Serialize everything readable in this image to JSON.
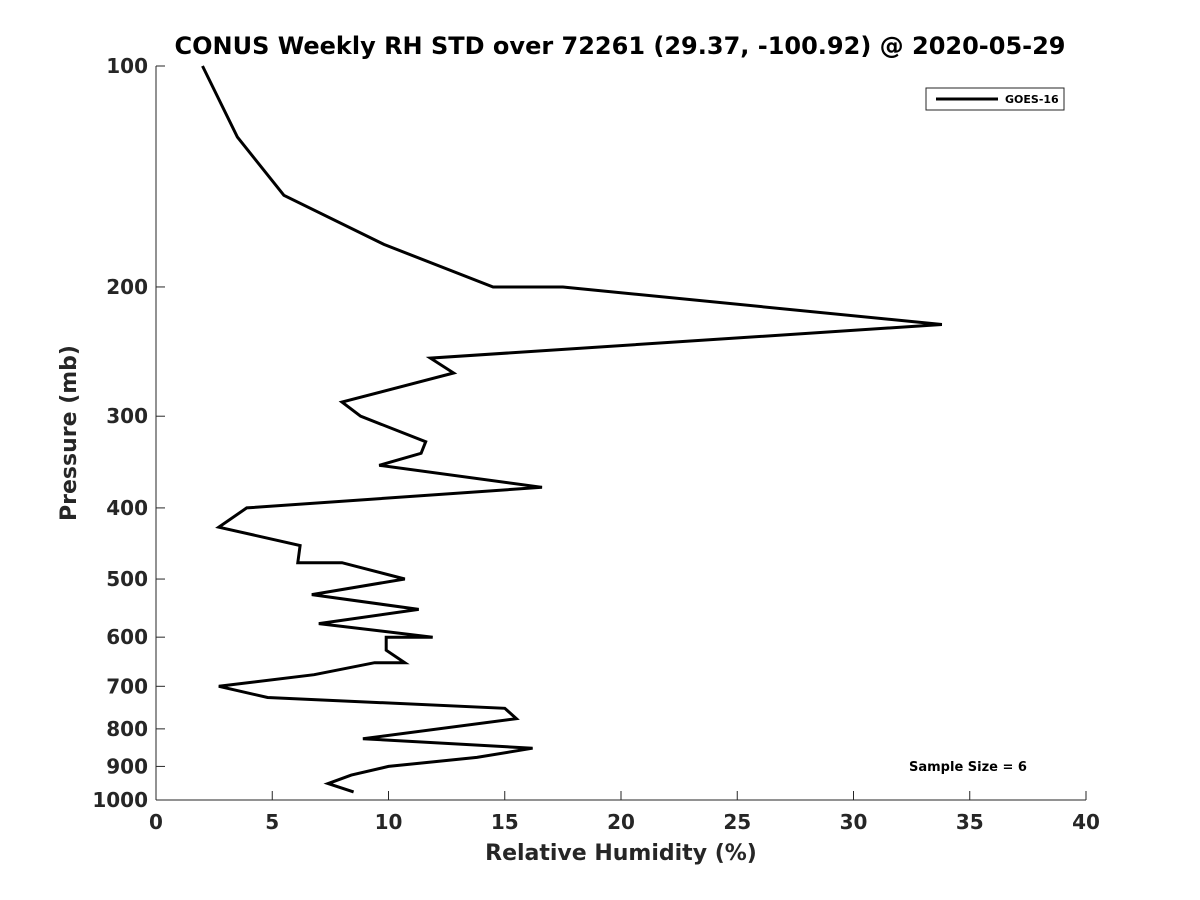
{
  "chart_data": {
    "type": "line",
    "title": "CONUS Weekly RH STD over 72261 (29.37, -100.92) @ 2020-05-29",
    "xlabel": "Relative Humidity (%)",
    "ylabel": "Pressure (mb)",
    "xlim": [
      0,
      40
    ],
    "ylim": [
      100,
      1000
    ],
    "yscale": "log",
    "y_reversed": true,
    "xticks": [
      0,
      5,
      10,
      15,
      20,
      25,
      30,
      35,
      40
    ],
    "yticks": [
      100,
      200,
      300,
      400,
      500,
      600,
      700,
      800,
      900,
      1000
    ],
    "legend_position": "top-right",
    "annotation": "Sample Size = 6",
    "series": [
      {
        "name": "GOES-16",
        "color": "#000000",
        "x": [
          2.0,
          3.5,
          5.5,
          9.8,
          14.5,
          17.5,
          33.8,
          11.8,
          12.8,
          8.0,
          8.8,
          11.6,
          11.4,
          9.6,
          16.6,
          3.9,
          2.7,
          6.2,
          6.2,
          6.1,
          8.0,
          10.7,
          6.7,
          11.3,
          7.0,
          11.9,
          9.9,
          9.9,
          10.7,
          9.4,
          6.8,
          2.7,
          4.8,
          15.0,
          15.5,
          8.9,
          16.2,
          13.8,
          10.0,
          8.4,
          7.4,
          8.5
        ],
        "y": [
          100,
          125,
          150,
          175,
          200,
          200,
          225,
          250,
          262,
          287,
          300,
          325,
          337,
          350,
          375,
          400,
          425,
          450,
          450,
          475,
          475,
          500,
          525,
          550,
          575,
          600,
          600,
          625,
          650,
          650,
          675,
          700,
          725,
          750,
          775,
          825,
          850,
          875,
          900,
          925,
          950,
          975
        ]
      }
    ]
  }
}
